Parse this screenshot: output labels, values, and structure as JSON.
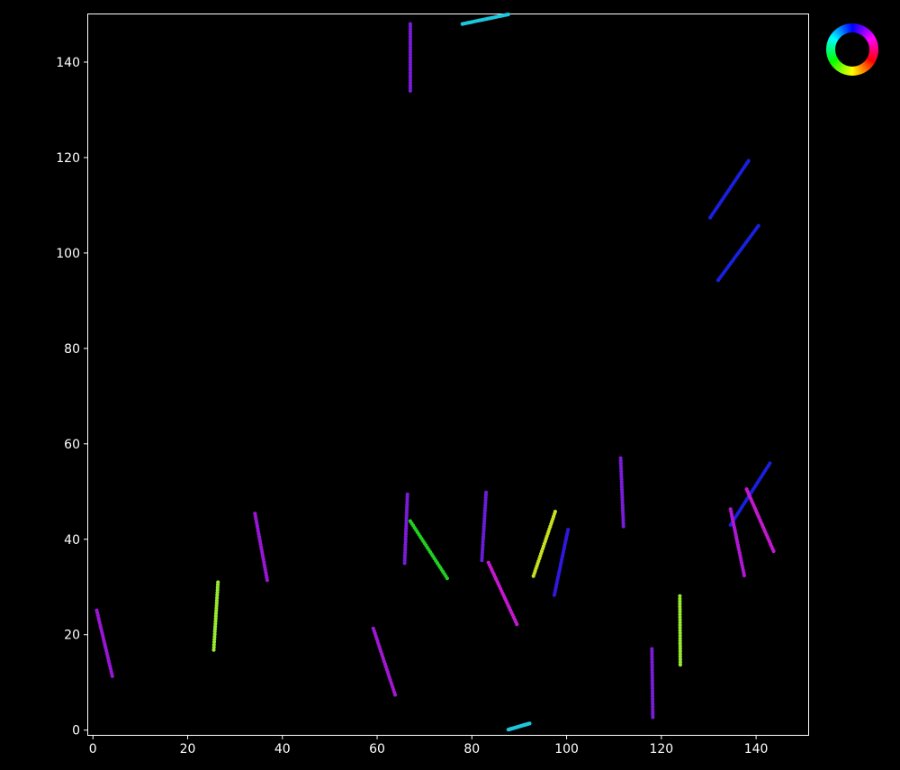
{
  "chart_data": {
    "type": "scatter",
    "title": "",
    "xlabel": "",
    "ylabel": "",
    "xlim": [
      -1,
      151
    ],
    "ylim": [
      -1,
      150
    ],
    "grid": false,
    "background": "#000000",
    "axis_color": "#ffffff",
    "xticks": [
      0,
      20,
      40,
      60,
      80,
      100,
      120,
      140
    ],
    "yticks": [
      0,
      20,
      40,
      60,
      80,
      100,
      120,
      140
    ],
    "legend": "color-wheel, top-right outside plot",
    "segments": [
      {
        "x0": 78.0,
        "y0": 148.0,
        "x1": 87.7,
        "y1": 150.0,
        "color": "#1ec6dc"
      },
      {
        "x0": 67.0,
        "y0": 148.0,
        "x1": 67.0,
        "y1": 134.0,
        "color": "#7a1cd8"
      },
      {
        "x0": 138.4,
        "y0": 119.3,
        "x1": 130.3,
        "y1": 107.4,
        "color": "#1a20e0"
      },
      {
        "x0": 140.5,
        "y0": 105.7,
        "x1": 132.0,
        "y1": 94.3,
        "color": "#1a20e0"
      },
      {
        "x0": 0.8,
        "y0": 25.1,
        "x1": 4.1,
        "y1": 11.3,
        "color": "#9a16d6"
      },
      {
        "x0": 26.4,
        "y0": 31.0,
        "x1": 25.5,
        "y1": 16.8,
        "color": "#98e830"
      },
      {
        "x0": 34.2,
        "y0": 45.4,
        "x1": 36.8,
        "y1": 31.4,
        "color": "#9a16d6"
      },
      {
        "x0": 59.2,
        "y0": 21.3,
        "x1": 63.8,
        "y1": 7.4,
        "color": "#a018d4"
      },
      {
        "x0": 66.4,
        "y0": 49.4,
        "x1": 65.8,
        "y1": 35.0,
        "color": "#7a1cd8"
      },
      {
        "x0": 67.0,
        "y0": 43.8,
        "x1": 74.8,
        "y1": 31.8,
        "color": "#20d020"
      },
      {
        "x0": 83.0,
        "y0": 49.8,
        "x1": 82.1,
        "y1": 35.6,
        "color": "#6a1cd8"
      },
      {
        "x0": 83.5,
        "y0": 35.1,
        "x1": 89.5,
        "y1": 22.2,
        "color": "#c418d0"
      },
      {
        "x0": 97.6,
        "y0": 45.8,
        "x1": 93.0,
        "y1": 32.3,
        "color": "#c8e020"
      },
      {
        "x0": 100.3,
        "y0": 42.0,
        "x1": 97.4,
        "y1": 28.3,
        "color": "#3018e0"
      },
      {
        "x0": 111.4,
        "y0": 57.0,
        "x1": 112.0,
        "y1": 42.7,
        "color": "#7a1cd8"
      },
      {
        "x0": 118.0,
        "y0": 17.0,
        "x1": 118.2,
        "y1": 2.7,
        "color": "#7a1cd8"
      },
      {
        "x0": 123.9,
        "y0": 28.1,
        "x1": 124.0,
        "y1": 13.7,
        "color": "#98e830"
      },
      {
        "x0": 142.9,
        "y0": 55.9,
        "x1": 134.6,
        "y1": 43.0,
        "color": "#1a20e0"
      },
      {
        "x0": 134.6,
        "y0": 46.3,
        "x1": 137.5,
        "y1": 32.4,
        "color": "#b018d4"
      },
      {
        "x0": 138.0,
        "y0": 50.5,
        "x1": 143.7,
        "y1": 37.5,
        "color": "#c418d0"
      },
      {
        "x0": 87.7,
        "y0": 0.1,
        "x1": 92.2,
        "y1": 1.4,
        "color": "#1ec6dc"
      }
    ]
  }
}
